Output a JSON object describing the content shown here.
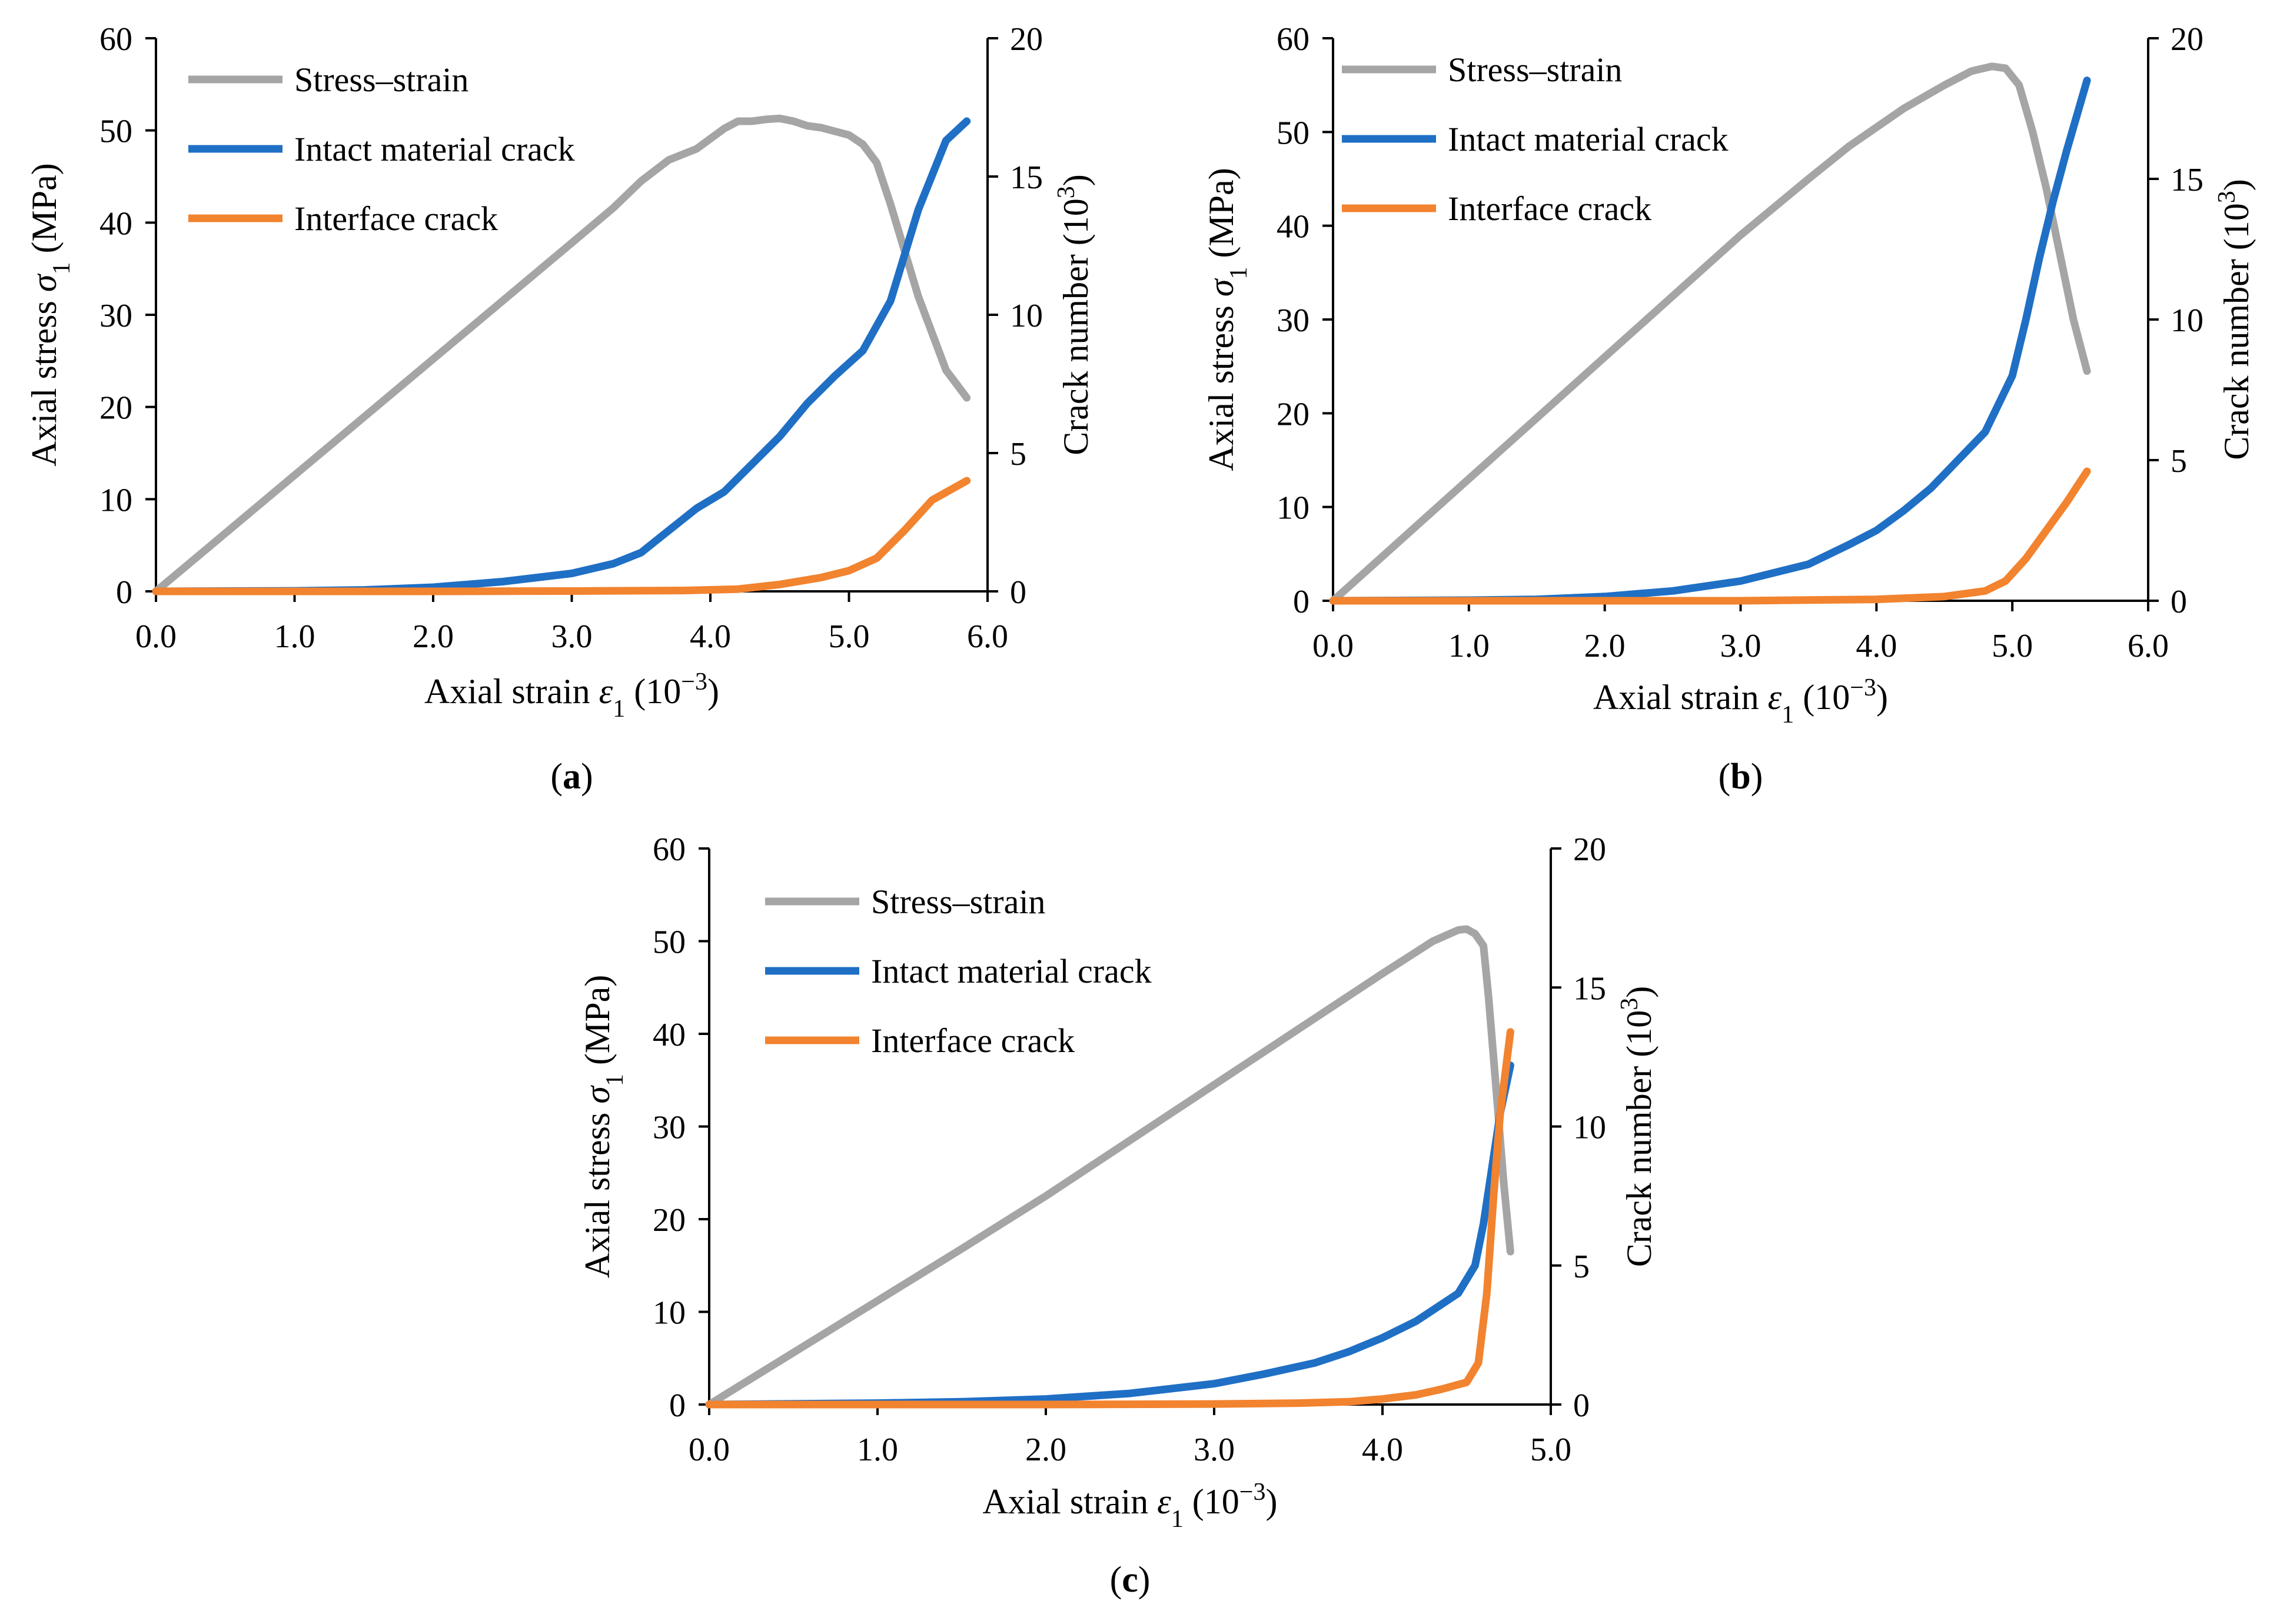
{
  "figure": {
    "colors": {
      "stress": "#a5a5a5",
      "intact": "#1f6fc5",
      "interface": "#f2832f"
    },
    "legend": {
      "stress": "Stress–strain",
      "intact": "Intact material crack",
      "interface": "Interface crack"
    },
    "x_axis_label": {
      "main": "Axial strain ",
      "sym": "ε",
      "sub": "1",
      "unit": " (10",
      "exp": "−3",
      "close": ")"
    },
    "y_left_label": {
      "main": "Axial stress ",
      "sym": "σ",
      "sub": "1",
      "unit": " (MPa)"
    },
    "y_right_label": {
      "main": "Crack number (10",
      "exp": "3",
      "close": ")"
    }
  },
  "chart_data": [
    {
      "type": "line",
      "panel_label": "a",
      "xlim": [
        0,
        6
      ],
      "xticks": [
        "0.0",
        "1.0",
        "2.0",
        "3.0",
        "4.0",
        "5.0",
        "6.0"
      ],
      "ylim_left": [
        0,
        60
      ],
      "yticks_left": [
        "0",
        "10",
        "20",
        "30",
        "40",
        "50",
        "60"
      ],
      "ylim_right": [
        0,
        20
      ],
      "yticks_right": [
        "0",
        "5",
        "10",
        "15",
        "20"
      ],
      "series": [
        {
          "name": "Stress–strain",
          "axis": "left",
          "x": [
            0,
            0.5,
            1,
            1.5,
            2,
            2.5,
            3,
            3.3,
            3.5,
            3.7,
            3.9,
            4.1,
            4.2,
            4.3,
            4.4,
            4.5,
            4.6,
            4.7,
            4.8,
            5.0,
            5.1,
            5.2,
            5.3,
            5.5,
            5.7,
            5.85
          ],
          "y": [
            0,
            6.3,
            12.6,
            18.9,
            25.2,
            31.5,
            37.8,
            41.6,
            44.5,
            46.8,
            48,
            50.2,
            51,
            51,
            51.2,
            51.3,
            51,
            50.5,
            50.3,
            49.5,
            48.5,
            46.5,
            42,
            32,
            24,
            21
          ]
        },
        {
          "name": "Intact material crack",
          "axis": "right",
          "x": [
            0,
            1,
            1.5,
            2,
            2.5,
            3,
            3.3,
            3.5,
            3.7,
            3.9,
            4.1,
            4.3,
            4.5,
            4.7,
            4.9,
            5.1,
            5.3,
            5.5,
            5.7,
            5.85
          ],
          "y": [
            0,
            0.02,
            0.05,
            0.15,
            0.35,
            0.65,
            1.0,
            1.4,
            2.2,
            3.0,
            3.6,
            4.6,
            5.6,
            6.8,
            7.8,
            8.7,
            10.5,
            13.8,
            16.3,
            17.0
          ]
        },
        {
          "name": "Interface crack",
          "axis": "right",
          "x": [
            0,
            1,
            2,
            3,
            3.8,
            4.2,
            4.5,
            4.8,
            5.0,
            5.2,
            5.4,
            5.6,
            5.85
          ],
          "y": [
            0,
            0,
            0,
            0.01,
            0.03,
            0.08,
            0.25,
            0.5,
            0.75,
            1.2,
            2.2,
            3.3,
            4.0
          ]
        }
      ]
    },
    {
      "type": "line",
      "panel_label": "b",
      "xlim": [
        0,
        6
      ],
      "xticks": [
        "0.0",
        "1.0",
        "2.0",
        "3.0",
        "4.0",
        "5.0",
        "6.0"
      ],
      "ylim_left": [
        0,
        60
      ],
      "yticks_left": [
        "0",
        "10",
        "20",
        "30",
        "40",
        "50",
        "60"
      ],
      "ylim_right": [
        0,
        20
      ],
      "yticks_right": [
        "0",
        "5",
        "10",
        "15",
        "20"
      ],
      "series": [
        {
          "name": "Stress–strain",
          "axis": "left",
          "x": [
            0,
            0.5,
            1,
            1.5,
            2,
            2.5,
            3,
            3.5,
            3.8,
            4.0,
            4.2,
            4.5,
            4.7,
            4.85,
            4.95,
            5.05,
            5.15,
            5.25,
            5.35,
            5.45,
            5.55
          ],
          "y": [
            0,
            6.5,
            13,
            19.5,
            26,
            32.5,
            39,
            45,
            48.5,
            50.5,
            52.5,
            55,
            56.5,
            57,
            56.8,
            55,
            50,
            44,
            37,
            30,
            24.5
          ]
        },
        {
          "name": "Intact material crack",
          "axis": "right",
          "x": [
            0,
            1,
            1.5,
            2,
            2.5,
            3,
            3.5,
            3.8,
            4.0,
            4.2,
            4.4,
            4.6,
            4.8,
            5.0,
            5.1,
            5.2,
            5.3,
            5.4,
            5.55
          ],
          "y": [
            0,
            0.02,
            0.05,
            0.15,
            0.35,
            0.7,
            1.3,
            2.0,
            2.5,
            3.2,
            4.0,
            5.0,
            6.0,
            8.0,
            10.0,
            12.2,
            14.2,
            16.0,
            18.5
          ]
        },
        {
          "name": "Interface crack",
          "axis": "right",
          "x": [
            0,
            1,
            2,
            3,
            4,
            4.5,
            4.8,
            4.95,
            5.1,
            5.25,
            5.4,
            5.55
          ],
          "y": [
            0,
            0,
            0,
            0,
            0.05,
            0.15,
            0.35,
            0.7,
            1.5,
            2.5,
            3.5,
            4.6
          ]
        }
      ]
    },
    {
      "type": "line",
      "panel_label": "c",
      "xlim": [
        0,
        5
      ],
      "xticks": [
        "0.0",
        "1.0",
        "2.0",
        "3.0",
        "4.0",
        "5.0"
      ],
      "ylim_left": [
        0,
        60
      ],
      "yticks_left": [
        "0",
        "10",
        "20",
        "30",
        "40",
        "50",
        "60"
      ],
      "ylim_right": [
        0,
        20
      ],
      "yticks_right": [
        "0",
        "5",
        "10",
        "15",
        "20"
      ],
      "series": [
        {
          "name": "Stress–strain",
          "axis": "left",
          "x": [
            0,
            0.5,
            1,
            1.5,
            2,
            2.5,
            3,
            3.5,
            4.0,
            4.3,
            4.45,
            4.5,
            4.55,
            4.6,
            4.63,
            4.68,
            4.72,
            4.76
          ],
          "y": [
            0,
            5.6,
            11.2,
            16.8,
            22.5,
            28.5,
            34.5,
            40.5,
            46.5,
            50,
            51.2,
            51.3,
            50.8,
            49.5,
            44,
            33,
            24,
            16.5
          ]
        },
        {
          "name": "Intact material crack",
          "axis": "right",
          "x": [
            0,
            1,
            1.5,
            2,
            2.5,
            3,
            3.3,
            3.6,
            3.8,
            4.0,
            4.2,
            4.35,
            4.45,
            4.55,
            4.6,
            4.65,
            4.7,
            4.76
          ],
          "y": [
            0,
            0.05,
            0.1,
            0.2,
            0.4,
            0.75,
            1.1,
            1.5,
            1.9,
            2.4,
            3.0,
            3.6,
            4.0,
            5.0,
            6.5,
            8.5,
            10.5,
            12.2
          ]
        },
        {
          "name": "Interface crack",
          "axis": "right",
          "x": [
            0,
            1,
            2,
            3,
            3.5,
            3.8,
            4.0,
            4.2,
            4.35,
            4.5,
            4.57,
            4.62,
            4.66,
            4.7,
            4.76
          ],
          "y": [
            0,
            0,
            0,
            0.02,
            0.05,
            0.1,
            0.2,
            0.35,
            0.55,
            0.8,
            1.5,
            4.0,
            7.5,
            10.5,
            13.4
          ]
        }
      ]
    }
  ]
}
